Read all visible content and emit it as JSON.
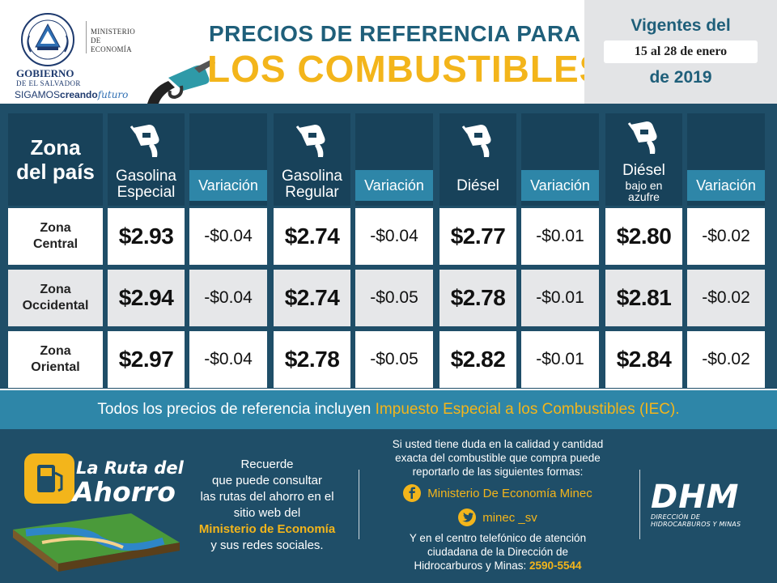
{
  "header": {
    "ministerio_line1": "MINISTERIO",
    "ministerio_line2": "DE ECONOMÍA",
    "gobierno": "GOBIERNO",
    "gobierno_sub": "DE EL SALVADOR",
    "slogan_a": "SIGAMOS",
    "slogan_b": "creando",
    "slogan_c": "futuro",
    "title_line1": "PRECIOS DE REFERENCIA PARA",
    "title_line2": "LOS COMBUSTIBLES",
    "vigentes_line1": "Vigentes del",
    "vigentes_dates": "15 al 28 de enero",
    "vigentes_year": "de 2019"
  },
  "table": {
    "zona_header_line1": "Zona",
    "zona_header_line2": "del país",
    "fuels": [
      {
        "line1": "Gasolina",
        "line2": "Especial",
        "variation_label": "Variación"
      },
      {
        "line1": "Gasolina",
        "line2": "Regular",
        "variation_label": "Variación"
      },
      {
        "line1": "Diésel",
        "line2": "",
        "variation_label": "Variación"
      },
      {
        "line1": "Diésel",
        "line2": "bajo en",
        "line3": "azufre",
        "variation_label": "Variación"
      }
    ],
    "rows": [
      {
        "zone_line1": "Zona",
        "zone_line2": "Central",
        "prices": [
          "$2.93",
          "$2.74",
          "$2.77",
          "$2.80"
        ],
        "variations": [
          "-$0.04",
          "-$0.04",
          "-$0.01",
          "-$0.02"
        ]
      },
      {
        "zone_line1": "Zona",
        "zone_line2": "Occidental",
        "prices": [
          "$2.94",
          "$2.74",
          "$2.78",
          "$2.81"
        ],
        "variations": [
          "-$0.04",
          "-$0.05",
          "-$0.01",
          "-$0.02"
        ]
      },
      {
        "zone_line1": "Zona",
        "zone_line2": "Oriental",
        "prices": [
          "$2.97",
          "$2.78",
          "$2.82",
          "$2.84"
        ],
        "variations": [
          "-$0.04",
          "-$0.05",
          "-$0.01",
          "-$0.02"
        ]
      }
    ]
  },
  "iec_banner": {
    "text": "Todos los precios de referencia incluyen ",
    "highlight": "Impuesto Especial a los Combustibles (IEC)."
  },
  "footer": {
    "ruta_line1": "La Ruta del",
    "ruta_line2": "Ahorro",
    "recuerde_1": "Recuerde",
    "recuerde_2": "que puede consultar",
    "recuerde_3": "las rutas del ahorro en el",
    "recuerde_4": "sitio web del",
    "recuerde_hl": "Ministerio de Economía",
    "recuerde_5": "y sus redes sociales.",
    "contact_1": "Si usted tiene duda en la calidad y cantidad",
    "contact_2": "exacta del combustible que compra puede",
    "contact_3": "reportarlo de las siguientes formas:",
    "facebook": "Ministerio De Economía Minec",
    "twitter": "minec _sv",
    "phone_1": "Y en el centro telefónico de atención",
    "phone_2": "ciudadana de la Dirección de",
    "phone_3": "Hidrocarburos y Minas: ",
    "phone_number": "2590-5544",
    "dhm": "DHM",
    "dhm_sub1": "DIRECCIÓN DE",
    "dhm_sub2": "HIDROCARBUROS Y MINAS"
  },
  "colors": {
    "navy": "#1f4e68",
    "header_cell": "#18425a",
    "teal": "#2e86a8",
    "gold": "#f3b51b",
    "title_blue": "#1f5f7a"
  }
}
